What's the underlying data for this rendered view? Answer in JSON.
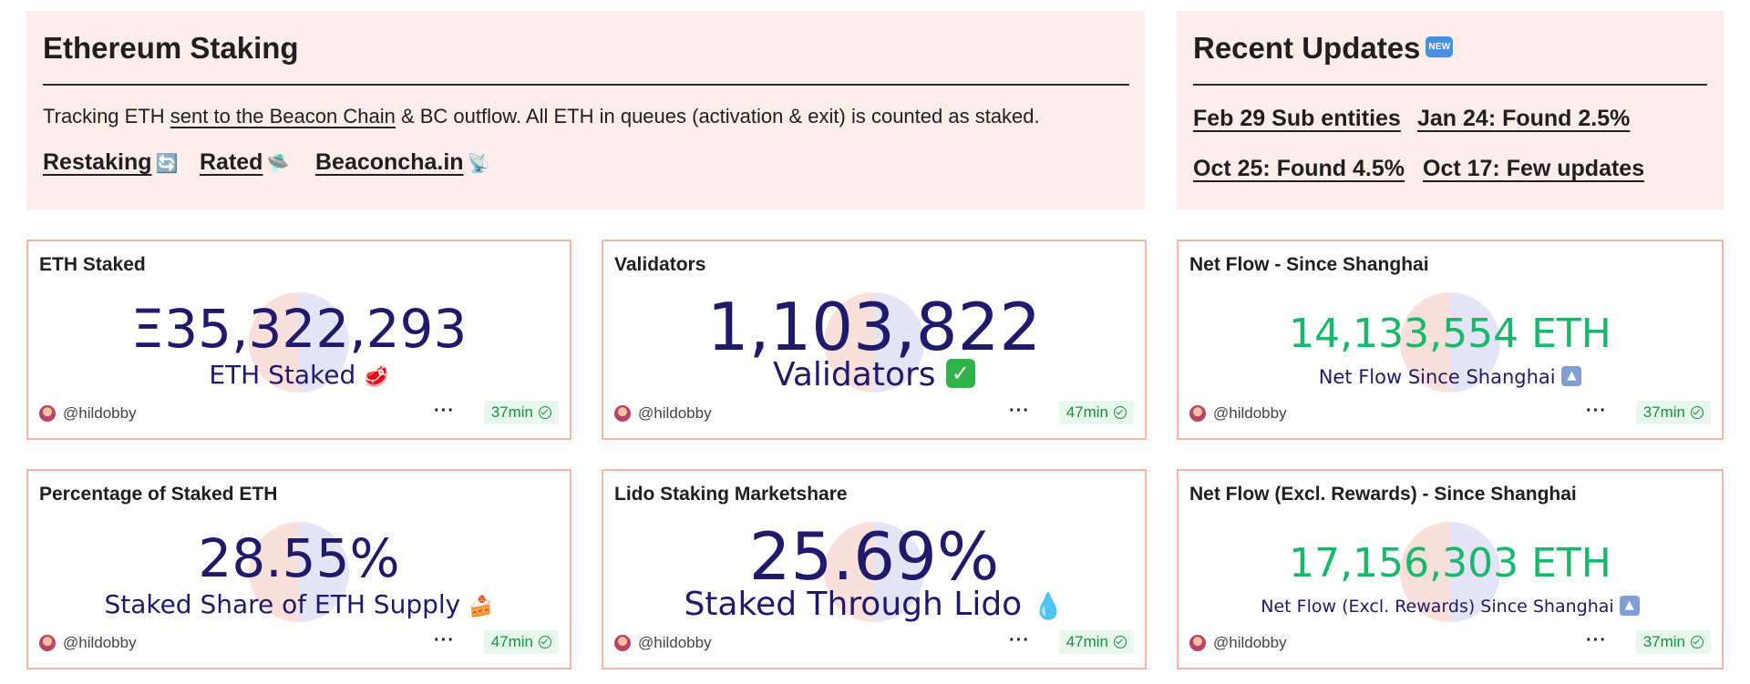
{
  "header": {
    "title": "Ethereum Staking",
    "description": {
      "prefix": "Tracking ETH ",
      "link": "sent to the Beacon Chain",
      "suffix": " & BC outflow. All ETH in queues (activation & exit) is counted as staked."
    },
    "links": [
      {
        "label": "Restaking",
        "icon": "🔄"
      },
      {
        "label": "Rated",
        "icon": "🛸"
      },
      {
        "label": "Beaconcha.in",
        "icon": "📡"
      }
    ]
  },
  "updates": {
    "title": "Recent Updates",
    "badge": "NEW",
    "items": [
      "Feb 29 Sub entities",
      "Jan 24: Found 2.5%",
      "Oct 25: Found 4.5%",
      "Oct 17: Few updates"
    ]
  },
  "cards": [
    {
      "title": "ETH Staked",
      "value": "Ξ35,322,293",
      "label": "ETH Staked",
      "emoji": "🥩",
      "author": "@hildobby",
      "age": "37min"
    },
    {
      "title": "Validators",
      "value": "1,103,822",
      "label": "Validators",
      "author": "@hildobby",
      "age": "47min"
    },
    {
      "title": "Net Flow - Since Shanghai",
      "value": "14,133,554 ETH",
      "label": "Net Flow Since Shanghai",
      "arrow": "▲",
      "author": "@hildobby",
      "age": "37min"
    },
    {
      "title": "Percentage of Staked ETH",
      "value": "28.55%",
      "label": "Staked Share of ETH Supply",
      "emoji": "🍰",
      "author": "@hildobby",
      "age": "47min"
    },
    {
      "title": "Lido Staking Marketshare",
      "value": "25.69%",
      "label": "Staked Through Lido",
      "emoji": "💧",
      "author": "@hildobby",
      "age": "47min"
    },
    {
      "title": "Net Flow (Excl. Rewards) - Since Shanghai",
      "value": "17,156,303 ETH",
      "label": "Net Flow (Excl. Rewards) Since Shanghai",
      "arrow": "▲",
      "author": "@hildobby",
      "age": "37min"
    }
  ],
  "footer": {
    "more": "···"
  },
  "colors": {
    "panel_bg": "#fcecea",
    "card_border": "#f4b7a8",
    "value_navy": "#1f1a6b",
    "value_green": "#18b86a"
  }
}
